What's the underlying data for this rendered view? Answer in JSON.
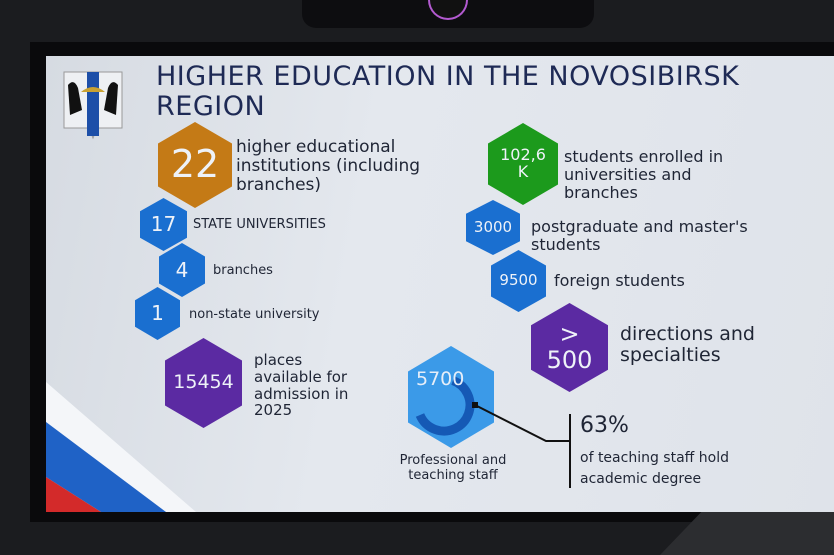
{
  "slide": {
    "title": "HIGHER EDUCATION IN THE NOVOSIBIRSK REGION",
    "stats": [
      {
        "value": "22",
        "label": "higher educational institutions (including branches)",
        "color": "#c47a16"
      },
      {
        "value": "17",
        "label": "STATE UNIVERSITIES",
        "color": "#1a6fd0"
      },
      {
        "value": "4",
        "label": "branches",
        "color": "#1a6fd0"
      },
      {
        "value": "1",
        "label": "non-state university",
        "color": "#1a6fd0"
      },
      {
        "value": "15454",
        "label": "places available for admission in 2025",
        "color": "#5b2aa2"
      },
      {
        "value": "102,6 K",
        "label": "students enrolled in universities and branches",
        "color": "#1c9a1c"
      },
      {
        "value": "3000",
        "label": "postgraduate and master's students",
        "color": "#1a6fd0"
      },
      {
        "value": "9500",
        "label": "foreign students",
        "color": "#1a6fd0"
      },
      {
        "value": "> 500",
        "label": "directions and specialties",
        "color": "#5b2aa2"
      },
      {
        "value": "5700",
        "label": "Professional and teaching staff",
        "color": "#3b9ae8"
      }
    ],
    "degree": {
      "percent": "63%",
      "label": "of teaching staff hold academic degree",
      "fraction": 0.63
    }
  }
}
